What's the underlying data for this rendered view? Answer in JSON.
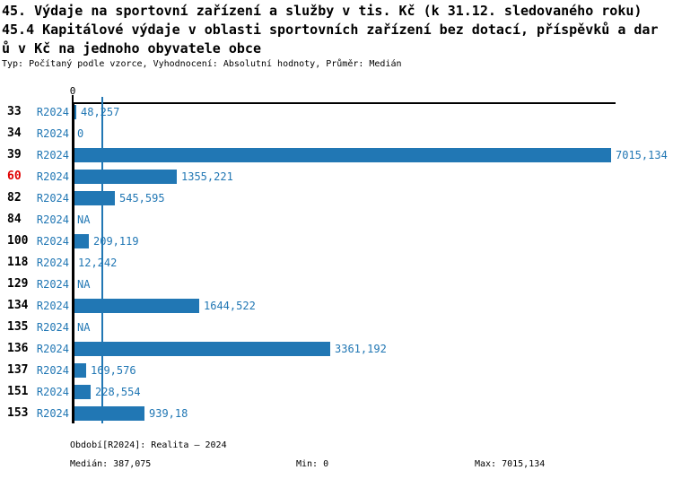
{
  "title": {
    "line1": "45. Výdaje na sportovní zařízení a služby v tis. Kč (k 31.12. sledovaného roku)",
    "line2": "45.4 Kapitálové výdaje v oblasti sportovních zařízení bez dotací, příspěvků a dar",
    "line3": "ů v Kč na jednoho obyvatele obce"
  },
  "subtitle": "Typ: Počítaný podle vzorce, Vyhodnocení: Absolutní hodnoty, Průměr: Medián",
  "colors": {
    "bar_blue": "#2177b4",
    "text_blue": "#2177b4",
    "highlight_red": "#e00000",
    "axis_black": "#000000"
  },
  "chart_data": {
    "type": "bar",
    "orientation": "horizontal",
    "axis_tick_zero": "0",
    "period_label": "R2024",
    "categories": [
      "33",
      "34",
      "39",
      "60",
      "82",
      "84",
      "100",
      "118",
      "129",
      "134",
      "135",
      "136",
      "137",
      "151",
      "153"
    ],
    "values": [
      48.257,
      0,
      7015.134,
      1355.221,
      545.595,
      null,
      209.119,
      12.242,
      null,
      1644.522,
      null,
      3361.192,
      169.576,
      228.554,
      939.18
    ],
    "value_labels": [
      "48,257",
      "0",
      "7015,134",
      "1355,221",
      "545,595",
      "NA",
      "209,119",
      "12,242",
      "NA",
      "1644,522",
      "NA",
      "3361,192",
      "169,576",
      "228,554",
      "939,18"
    ],
    "highlighted_category": "60",
    "xlim": [
      0,
      7015.134
    ],
    "median_value": 387.075,
    "legend_position": "none",
    "grid": false
  },
  "footer": {
    "period": "Období[R2024]: Realita – 2024",
    "median": "Medián: 387,075",
    "min": "Min: 0",
    "max": "Max: 7015,134"
  }
}
